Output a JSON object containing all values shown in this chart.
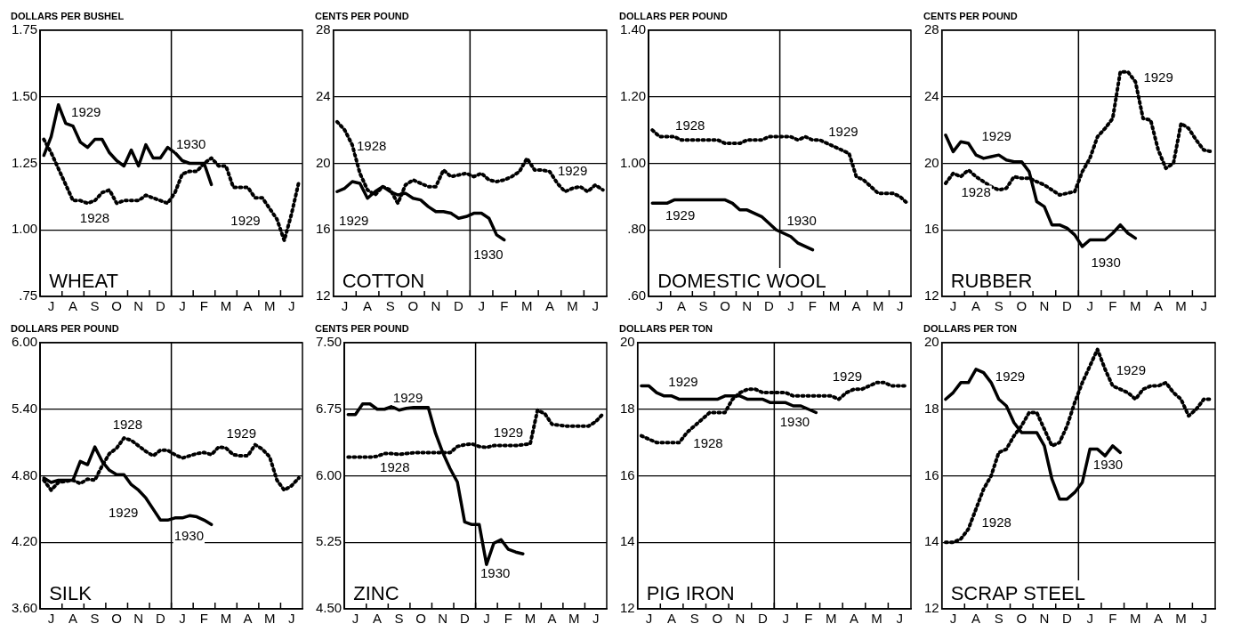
{
  "chart_data": [
    {
      "type": "line",
      "title": "WHEAT",
      "ylabel": "DOLLARS PER BUSHEL",
      "categories": [
        null,
        "J",
        null,
        null,
        "A",
        null,
        null,
        "S",
        null,
        null,
        "O",
        null,
        null,
        "N",
        null,
        null,
        "D",
        null,
        null,
        "J",
        null,
        null,
        "F",
        null,
        null,
        "M",
        null,
        null,
        "A",
        null,
        null,
        "M",
        null,
        null,
        "J",
        null
      ],
      "ylim": [
        0.75,
        1.75
      ],
      "yticks": [
        {
          "value": 0.75,
          "label": ".75"
        },
        {
          "value": 1,
          "label": "1.00"
        },
        {
          "value": 1.25,
          "label": "1.25"
        },
        {
          "value": 1.5,
          "label": "1.50"
        },
        {
          "value": 1.75,
          "label": "1.75"
        }
      ],
      "grid": "y",
      "series": [
        {
          "color": "#000000",
          "line_style": "dotted",
          "values": [
            1.34,
            1.29,
            1.23,
            1.17,
            1.11,
            1.11,
            1.1,
            1.11,
            1.14,
            1.15,
            1.1,
            1.11,
            1.11,
            1.11,
            1.13,
            1.12,
            1.11,
            1.1,
            1.14,
            1.21,
            1.22,
            1.22,
            1.25,
            1.27,
            1.24,
            1.24,
            1.16,
            1.16,
            1.16,
            1.12,
            1.12,
            1.08,
            1.04,
            0.96,
            1.06,
            1.18
          ]
        },
        {
          "color": "#000000",
          "line_style": "solid",
          "values": [
            1.28,
            1.35,
            1.47,
            1.4,
            1.39,
            1.33,
            1.31,
            1.34,
            1.34,
            1.29,
            1.26,
            1.24,
            1.3,
            1.24,
            1.32,
            1.27,
            1.27,
            1.31,
            1.29,
            1.26,
            1.25,
            1.25,
            1.25,
            1.17,
            null,
            null,
            null,
            null,
            null,
            null,
            null,
            null,
            null,
            null,
            null,
            null
          ]
        }
      ],
      "annotations": [
        "1929",
        "1930",
        "1928",
        "1929"
      ]
    },
    {
      "type": "line",
      "title": "COTTON",
      "ylabel": "CENTS PER POUND",
      "categories": [
        null,
        "J",
        null,
        null,
        "A",
        null,
        null,
        "S",
        null,
        null,
        "O",
        null,
        null,
        "N",
        null,
        null,
        "D",
        null,
        null,
        "J",
        null,
        null,
        "F",
        null,
        null,
        "M",
        null,
        null,
        "A",
        null,
        null,
        "M",
        null,
        null,
        "J",
        null
      ],
      "ylim": [
        12,
        28
      ],
      "yticks": [
        12,
        16,
        20,
        24,
        28
      ],
      "grid": "y",
      "series": [
        {
          "color": "#000000",
          "line_style": "dotted",
          "values": [
            22.5,
            22.0,
            21.1,
            19.4,
            18.4,
            18.1,
            18.6,
            18.4,
            17.6,
            18.7,
            19.0,
            18.8,
            18.6,
            18.6,
            19.6,
            19.2,
            19.3,
            19.4,
            19.2,
            19.4,
            19.0,
            18.9,
            19.0,
            19.2,
            19.5,
            20.3,
            19.6,
            19.6,
            19.5,
            18.8,
            18.3,
            18.5,
            18.6,
            18.3,
            18.7,
            18.4
          ]
        },
        {
          "color": "#000000",
          "line_style": "solid",
          "values": [
            18.3,
            18.5,
            18.9,
            18.8,
            17.9,
            18.3,
            18.6,
            18.3,
            18.1,
            18.2,
            17.9,
            17.8,
            17.4,
            17.1,
            17.1,
            17.0,
            16.7,
            16.8,
            17.0,
            17.0,
            16.7,
            15.7,
            15.4,
            null,
            null,
            null,
            null,
            null,
            null,
            null,
            null,
            null,
            null,
            null,
            null,
            null
          ]
        }
      ],
      "annotations": [
        "1928",
        "1929",
        "1930",
        "1929"
      ]
    },
    {
      "type": "line",
      "title": "DOMESTIC WOOL",
      "ylabel": "DOLLARS PER POUND",
      "categories": [
        null,
        "J",
        null,
        null,
        "A",
        null,
        null,
        "S",
        null,
        null,
        "O",
        null,
        null,
        "N",
        null,
        null,
        "D",
        null,
        null,
        "J",
        null,
        null,
        "F",
        null,
        null,
        "M",
        null,
        null,
        "A",
        null,
        null,
        "M",
        null,
        null,
        "J",
        null
      ],
      "ylim": [
        0.6,
        1.4
      ],
      "yticks": [
        {
          "value": 0.6,
          "label": ".60"
        },
        {
          "value": 0.8,
          "label": ".80"
        },
        {
          "value": 1,
          "label": "1.00"
        },
        {
          "value": 1.2,
          "label": "1.20"
        },
        {
          "value": 1.4,
          "label": "1.40"
        }
      ],
      "grid": "y",
      "series": [
        {
          "color": "#000000",
          "line_style": "dotted",
          "values": [
            1.1,
            1.08,
            1.08,
            1.08,
            1.07,
            1.07,
            1.07,
            1.07,
            1.07,
            1.07,
            1.06,
            1.06,
            1.06,
            1.07,
            1.07,
            1.07,
            1.08,
            1.08,
            1.08,
            1.08,
            1.07,
            1.08,
            1.07,
            1.07,
            1.06,
            1.05,
            1.04,
            1.03,
            0.96,
            0.95,
            0.93,
            0.91,
            0.91,
            0.91,
            0.9,
            0.88
          ]
        },
        {
          "color": "#000000",
          "line_style": "solid",
          "values": [
            0.88,
            0.88,
            0.88,
            0.89,
            0.89,
            0.89,
            0.89,
            0.89,
            0.89,
            0.89,
            0.89,
            0.88,
            0.86,
            0.86,
            0.85,
            0.84,
            0.82,
            0.8,
            0.79,
            0.78,
            0.76,
            0.75,
            0.74,
            null,
            null,
            null,
            null,
            null,
            null,
            null,
            null,
            null,
            null,
            null,
            null,
            null
          ]
        }
      ],
      "annotations": [
        "1928",
        "1929",
        "1930",
        "1929"
      ]
    },
    {
      "type": "line",
      "title": "RUBBER",
      "ylabel": "CENTS PER POUND",
      "categories": [
        null,
        "J",
        null,
        null,
        "A",
        null,
        null,
        "S",
        null,
        null,
        "O",
        null,
        null,
        "N",
        null,
        null,
        "D",
        null,
        null,
        "J",
        null,
        null,
        "F",
        null,
        null,
        "M",
        null,
        null,
        "A",
        null,
        null,
        "M",
        null,
        null,
        "J",
        null
      ],
      "ylim": [
        12,
        28
      ],
      "yticks": [
        12,
        16,
        20,
        24,
        28
      ],
      "grid": "y",
      "series": [
        {
          "color": "#000000",
          "line_style": "dotted",
          "values": [
            18.8,
            19.4,
            19.2,
            19.6,
            19.2,
            18.9,
            18.6,
            18.4,
            18.5,
            19.2,
            19.1,
            19.1,
            18.9,
            18.7,
            18.4,
            18.1,
            18.2,
            18.3,
            19.5,
            20.3,
            21.6,
            22.1,
            22.7,
            25.5,
            25.5,
            24.9,
            22.7,
            22.6,
            20.8,
            19.7,
            20.0,
            22.4,
            22.1,
            21.4,
            20.8,
            20.7
          ]
        },
        {
          "color": "#000000",
          "line_style": "solid",
          "values": [
            21.7,
            20.7,
            21.3,
            21.2,
            20.5,
            20.3,
            20.4,
            20.5,
            20.2,
            20.1,
            20.1,
            19.5,
            17.7,
            17.4,
            16.3,
            16.3,
            16.1,
            15.7,
            15.0,
            15.4,
            15.4,
            15.4,
            15.8,
            16.3,
            15.8,
            15.5,
            null,
            null,
            null,
            null,
            null,
            null,
            null,
            null,
            null,
            null
          ]
        }
      ],
      "annotations": [
        "1929",
        "1928",
        "1930",
        "1929"
      ]
    },
    {
      "type": "line",
      "title": "SILK",
      "ylabel": "DOLLARS PER POUND",
      "categories": [
        null,
        "J",
        null,
        null,
        "A",
        null,
        null,
        "S",
        null,
        null,
        "O",
        null,
        null,
        "N",
        null,
        null,
        "D",
        null,
        null,
        "J",
        null,
        null,
        "F",
        null,
        null,
        "M",
        null,
        null,
        "A",
        null,
        null,
        "M",
        null,
        null,
        "J",
        null
      ],
      "ylim": [
        3.6,
        6.0
      ],
      "yticks": [
        {
          "value": 3.6,
          "label": "3.60"
        },
        {
          "value": 4.2,
          "label": "4.20"
        },
        {
          "value": 4.8,
          "label": "4.80"
        },
        {
          "value": 5.4,
          "label": "5.40"
        },
        {
          "value": 6,
          "label": "6.00"
        }
      ],
      "grid": "y",
      "series": [
        {
          "color": "#000000",
          "line_style": "dotted",
          "values": [
            4.76,
            4.67,
            4.74,
            4.75,
            4.76,
            4.73,
            4.77,
            4.76,
            4.89,
            5.0,
            5.05,
            5.14,
            5.12,
            5.07,
            5.02,
            4.98,
            5.03,
            5.03,
            4.99,
            4.96,
            4.98,
            5.0,
            5.01,
            4.99,
            5.06,
            5.05,
            4.99,
            4.98,
            4.98,
            5.08,
            5.04,
            4.97,
            4.76,
            4.67,
            4.71,
            4.78
          ]
        },
        {
          "color": "#000000",
          "line_style": "solid",
          "values": [
            4.78,
            4.74,
            4.76,
            4.76,
            4.76,
            4.93,
            4.9,
            5.06,
            4.93,
            4.85,
            4.81,
            4.81,
            4.72,
            4.67,
            4.6,
            4.5,
            4.4,
            4.4,
            4.42,
            4.42,
            4.44,
            4.43,
            4.4,
            4.36,
            null,
            null,
            null,
            null,
            null,
            null,
            null,
            null,
            null,
            null,
            null,
            null
          ]
        }
      ],
      "annotations": [
        "1928",
        "1929",
        "1929",
        "1930"
      ]
    },
    {
      "type": "line",
      "title": "ZINC",
      "ylabel": "CENTS PER POUND",
      "categories": [
        null,
        "J",
        null,
        null,
        "A",
        null,
        null,
        "S",
        null,
        null,
        "O",
        null,
        null,
        "N",
        null,
        null,
        "D",
        null,
        null,
        "J",
        null,
        null,
        "F",
        null,
        null,
        "M",
        null,
        null,
        "A",
        null,
        null,
        "M",
        null,
        null,
        "J",
        null
      ],
      "ylim": [
        4.5,
        7.5
      ],
      "yticks": [
        {
          "value": 4.5,
          "label": "4.50"
        },
        {
          "value": 5.25,
          "label": "5.25"
        },
        {
          "value": 6,
          "label": "6.00"
        },
        {
          "value": 6.75,
          "label": "6.75"
        },
        {
          "value": 7.5,
          "label": "7.50"
        }
      ],
      "grid": "y",
      "series": [
        {
          "color": "#000000",
          "line_style": "dotted",
          "values": [
            6.21,
            6.21,
            6.21,
            6.21,
            6.22,
            6.25,
            6.25,
            6.24,
            6.25,
            6.26,
            6.26,
            6.26,
            6.26,
            6.26,
            6.26,
            6.33,
            6.35,
            6.36,
            6.33,
            6.32,
            6.34,
            6.34,
            6.34,
            6.34,
            6.35,
            6.36,
            6.74,
            6.7,
            6.58,
            6.57,
            6.56,
            6.56,
            6.56,
            6.56,
            6.61,
            6.7
          ]
        },
        {
          "color": "#000000",
          "line_style": "solid",
          "values": [
            6.69,
            6.69,
            6.81,
            6.81,
            6.75,
            6.75,
            6.78,
            6.74,
            6.76,
            6.77,
            6.77,
            6.77,
            6.48,
            6.26,
            6.08,
            5.93,
            5.48,
            5.45,
            5.45,
            5.0,
            5.24,
            5.28,
            5.17,
            5.14,
            5.12,
            null,
            null,
            null,
            null,
            null,
            null,
            null,
            null,
            null,
            null,
            null
          ]
        }
      ],
      "annotations": [
        "1929",
        "1928",
        "1929",
        "1930"
      ]
    },
    {
      "type": "line",
      "title": "PIG IRON",
      "ylabel": "DOLLARS PER TON",
      "categories": [
        null,
        "J",
        null,
        null,
        "A",
        null,
        null,
        "S",
        null,
        null,
        "O",
        null,
        null,
        "N",
        null,
        null,
        "D",
        null,
        null,
        "J",
        null,
        null,
        "F",
        null,
        null,
        "M",
        null,
        null,
        "A",
        null,
        null,
        "M",
        null,
        null,
        "J",
        null
      ],
      "ylim": [
        12,
        20
      ],
      "yticks": [
        12,
        14,
        16,
        18,
        20
      ],
      "grid": "y",
      "series": [
        {
          "color": "#000000",
          "line_style": "dotted",
          "values": [
            17.2,
            17.1,
            17.0,
            17.0,
            17.0,
            17.0,
            17.3,
            17.5,
            17.7,
            17.9,
            17.9,
            17.9,
            18.3,
            18.5,
            18.6,
            18.6,
            18.5,
            18.5,
            18.5,
            18.5,
            18.4,
            18.4,
            18.4,
            18.4,
            18.4,
            18.4,
            18.3,
            18.5,
            18.6,
            18.6,
            18.7,
            18.8,
            18.8,
            18.7,
            18.7,
            18.7
          ]
        },
        {
          "color": "#000000",
          "line_style": "solid",
          "values": [
            18.7,
            18.7,
            18.5,
            18.4,
            18.4,
            18.3,
            18.3,
            18.3,
            18.3,
            18.3,
            18.3,
            18.4,
            18.4,
            18.4,
            18.3,
            18.3,
            18.3,
            18.2,
            18.2,
            18.2,
            18.1,
            18.1,
            18.0,
            17.9,
            null,
            null,
            null,
            null,
            null,
            null,
            null,
            null,
            null,
            null,
            null,
            null
          ]
        }
      ],
      "annotations": [
        "1929",
        "1928",
        "1930",
        "1929"
      ]
    },
    {
      "type": "line",
      "title": "SCRAP STEEL",
      "ylabel": "DOLLARS PER TON",
      "categories": [
        null,
        "J",
        null,
        null,
        "A",
        null,
        null,
        "S",
        null,
        null,
        "O",
        null,
        null,
        "N",
        null,
        null,
        "D",
        null,
        null,
        "J",
        null,
        null,
        "F",
        null,
        null,
        "M",
        null,
        null,
        "A",
        null,
        null,
        "M",
        null,
        null,
        "J",
        null
      ],
      "ylim": [
        12,
        20
      ],
      "yticks": [
        12,
        14,
        16,
        18,
        20
      ],
      "grid": "y",
      "series": [
        {
          "color": "#000000",
          "line_style": "dotted",
          "values": [
            14.0,
            14.0,
            14.1,
            14.4,
            15.0,
            15.6,
            16.0,
            16.7,
            16.8,
            17.2,
            17.5,
            17.9,
            17.9,
            17.4,
            16.9,
            17.0,
            17.5,
            18.2,
            18.8,
            19.3,
            19.8,
            19.2,
            18.7,
            18.6,
            18.5,
            18.3,
            18.6,
            18.7,
            18.7,
            18.8,
            18.5,
            18.3,
            17.8,
            18.0,
            18.3,
            18.3
          ]
        },
        {
          "color": "#000000",
          "line_style": "solid",
          "values": [
            18.3,
            18.5,
            18.8,
            18.8,
            19.2,
            19.1,
            18.8,
            18.3,
            18.1,
            17.6,
            17.3,
            17.3,
            17.3,
            16.9,
            15.9,
            15.3,
            15.3,
            15.5,
            15.8,
            16.8,
            16.8,
            16.6,
            16.9,
            16.7,
            null,
            null,
            null,
            null,
            null,
            null,
            null,
            null,
            null,
            null,
            null,
            null
          ]
        }
      ],
      "annotations": [
        "1929",
        "1928",
        "1930",
        "1929"
      ]
    }
  ]
}
